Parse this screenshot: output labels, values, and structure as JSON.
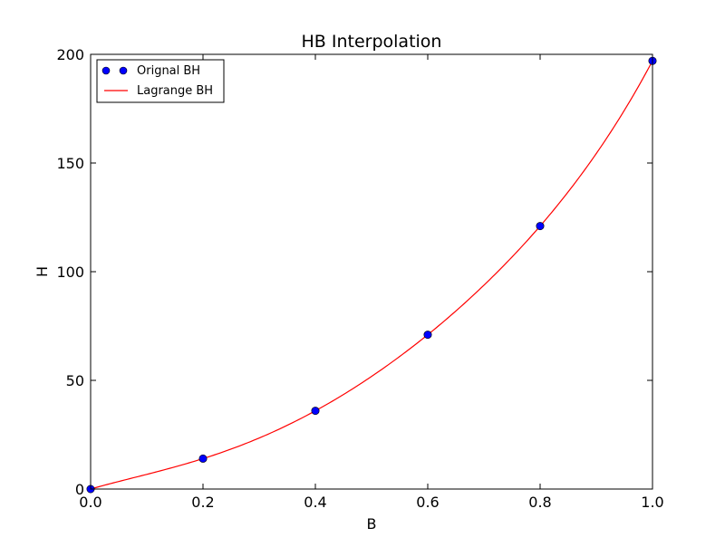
{
  "chart_data": {
    "type": "line",
    "title": "HB Interpolation",
    "xlabel": "B",
    "ylabel": "H",
    "xlim": [
      0.0,
      1.0
    ],
    "ylim": [
      0,
      200
    ],
    "xticks": [
      "0.0",
      "0.2",
      "0.4",
      "0.6",
      "0.8",
      "1.0"
    ],
    "yticks": [
      "0",
      "50",
      "100",
      "150",
      "200"
    ],
    "grid": false,
    "legend_position": "top-left",
    "series": [
      {
        "name": "Orignal BH",
        "kind": "scatter",
        "color": "#0000ff",
        "x": [
          0.0,
          0.2,
          0.4,
          0.6,
          0.8,
          1.0
        ],
        "y": [
          0,
          14,
          36,
          71,
          121,
          197
        ]
      },
      {
        "name": "Lagrange BH",
        "kind": "line",
        "color": "#ff0000",
        "method": "lagrange",
        "interpolates_series": 0
      }
    ]
  }
}
